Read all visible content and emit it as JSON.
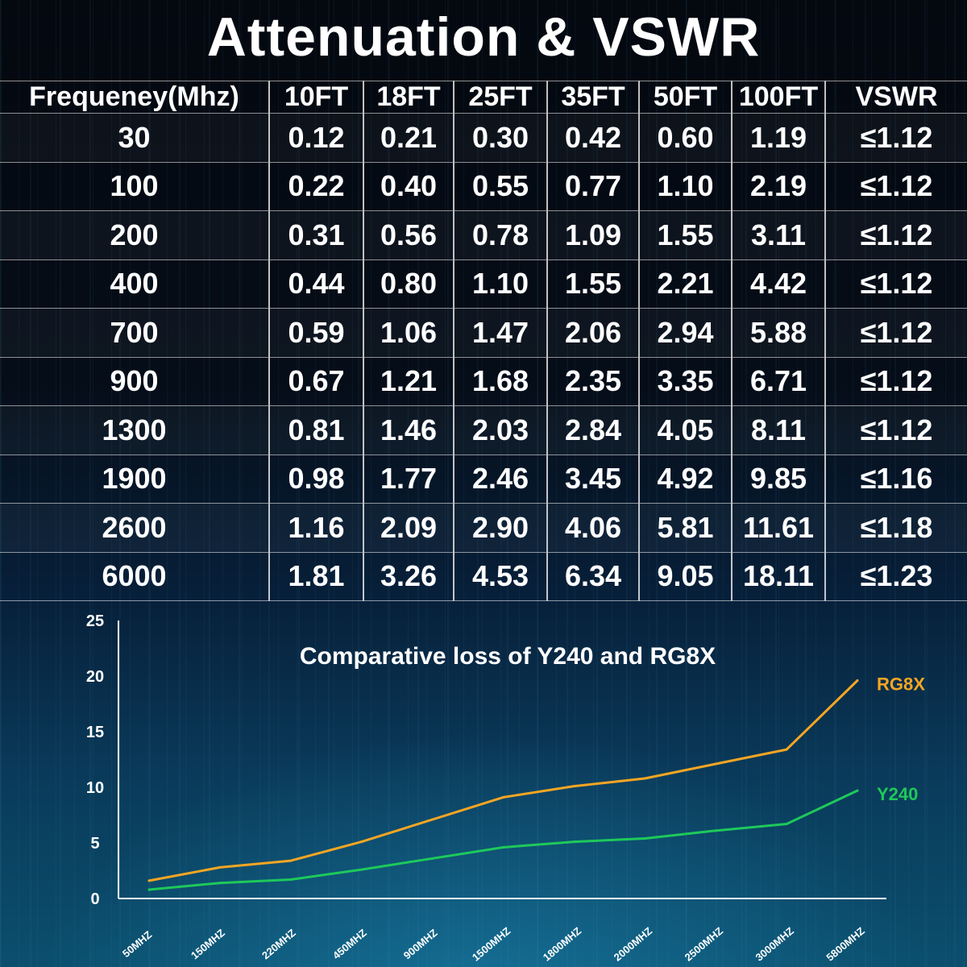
{
  "title": "Attenuation & VSWR",
  "table": {
    "headers": [
      "Frequeney(Mhz)",
      "10FT",
      "18FT",
      "25FT",
      "35FT",
      "50FT",
      "100FT",
      "VSWR"
    ],
    "rows": [
      [
        "30",
        "0.12",
        "0.21",
        "0.30",
        "0.42",
        "0.60",
        "1.19",
        "≤1.12"
      ],
      [
        "100",
        "0.22",
        "0.40",
        "0.55",
        "0.77",
        "1.10",
        "2.19",
        "≤1.12"
      ],
      [
        "200",
        "0.31",
        "0.56",
        "0.78",
        "1.09",
        "1.55",
        "3.11",
        "≤1.12"
      ],
      [
        "400",
        "0.44",
        "0.80",
        "1.10",
        "1.55",
        "2.21",
        "4.42",
        "≤1.12"
      ],
      [
        "700",
        "0.59",
        "1.06",
        "1.47",
        "2.06",
        "2.94",
        "5.88",
        "≤1.12"
      ],
      [
        "900",
        "0.67",
        "1.21",
        "1.68",
        "2.35",
        "3.35",
        "6.71",
        "≤1.12"
      ],
      [
        "1300",
        "0.81",
        "1.46",
        "2.03",
        "2.84",
        "4.05",
        "8.11",
        "≤1.12"
      ],
      [
        "1900",
        "0.98",
        "1.77",
        "2.46",
        "3.45",
        "4.92",
        "9.85",
        "≤1.16"
      ],
      [
        "2600",
        "1.16",
        "2.09",
        "2.90",
        "4.06",
        "5.81",
        "11.61",
        "≤1.18"
      ],
      [
        "6000",
        "1.81",
        "3.26",
        "4.53",
        "6.34",
        "9.05",
        "18.11",
        "≤1.23"
      ]
    ]
  },
  "chart_data": {
    "type": "line",
    "title": "Comparative loss of Y240 and RG8X",
    "categories": [
      "50MHZ",
      "150MHZ",
      "220MHZ",
      "450MHZ",
      "900MHZ",
      "1500MHZ",
      "1800MHZ",
      "2000MHZ",
      "2500MHZ",
      "3000MHZ",
      "5800MHZ"
    ],
    "series": [
      {
        "name": "RG8X",
        "color": "#f5a623",
        "values": [
          1.6,
          2.8,
          3.4,
          5.1,
          7.1,
          9.1,
          10.1,
          10.8,
          12.1,
          13.4,
          19.6
        ]
      },
      {
        "name": "Y240",
        "color": "#1ec95a",
        "values": [
          0.8,
          1.4,
          1.7,
          2.6,
          3.6,
          4.6,
          5.1,
          5.4,
          6.1,
          6.7,
          9.7
        ]
      }
    ],
    "ylim": [
      0,
      25
    ],
    "yticks": [
      0,
      5,
      10,
      15,
      20,
      25
    ],
    "xlabel": "",
    "ylabel": "",
    "grid": false,
    "legend": "right end of lines"
  }
}
